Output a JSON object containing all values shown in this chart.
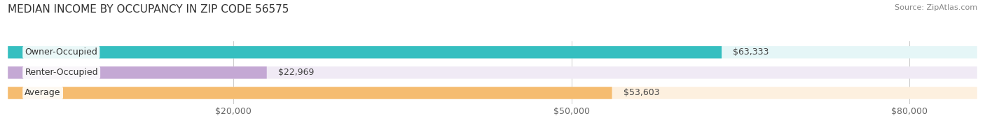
{
  "title": "MEDIAN INCOME BY OCCUPANCY IN ZIP CODE 56575",
  "source": "Source: ZipAtlas.com",
  "categories": [
    "Owner-Occupied",
    "Renter-Occupied",
    "Average"
  ],
  "values": [
    63333,
    22969,
    53603
  ],
  "bar_colors": [
    "#35bfc0",
    "#c4a8d4",
    "#f5bc70"
  ],
  "bar_bg_colors": [
    "#e5f6f7",
    "#f0eaf5",
    "#fdf0df"
  ],
  "value_labels": [
    "$63,333",
    "$22,969",
    "$53,603"
  ],
  "xlim": [
    0,
    86000
  ],
  "xticks": [
    20000,
    50000,
    80000
  ],
  "xtick_labels": [
    "$20,000",
    "$50,000",
    "$80,000"
  ],
  "title_fontsize": 11,
  "source_fontsize": 8,
  "label_fontsize": 9,
  "value_fontsize": 9,
  "tick_fontsize": 9,
  "background_color": "#ffffff",
  "bar_height": 0.6
}
